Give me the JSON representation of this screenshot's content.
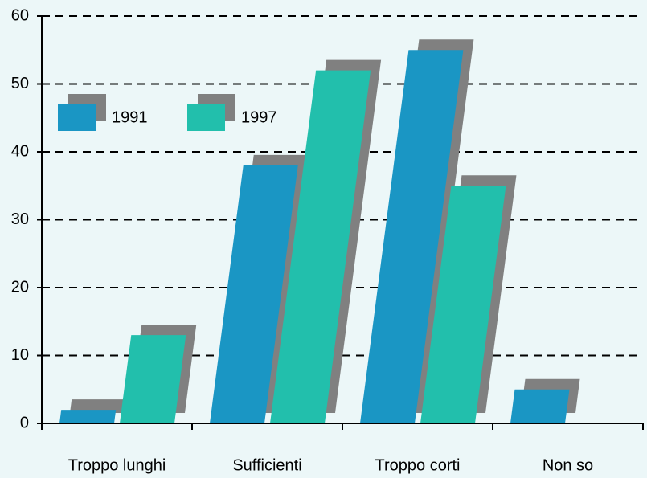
{
  "chart_data": {
    "type": "bar",
    "categories": [
      "Troppo lunghi",
      "Sufficienti",
      "Troppo corti",
      "Non so"
    ],
    "series": [
      {
        "name": "1991",
        "color": "#1a96c4",
        "values": [
          2,
          38,
          55,
          5
        ]
      },
      {
        "name": "1997",
        "color": "#22bfac",
        "values": [
          13,
          52,
          35,
          0
        ]
      }
    ],
    "shadow_color": "#808080",
    "ylim": [
      0,
      60
    ],
    "yticks": [
      0,
      10,
      20,
      30,
      40,
      50,
      60
    ],
    "grid": true
  }
}
